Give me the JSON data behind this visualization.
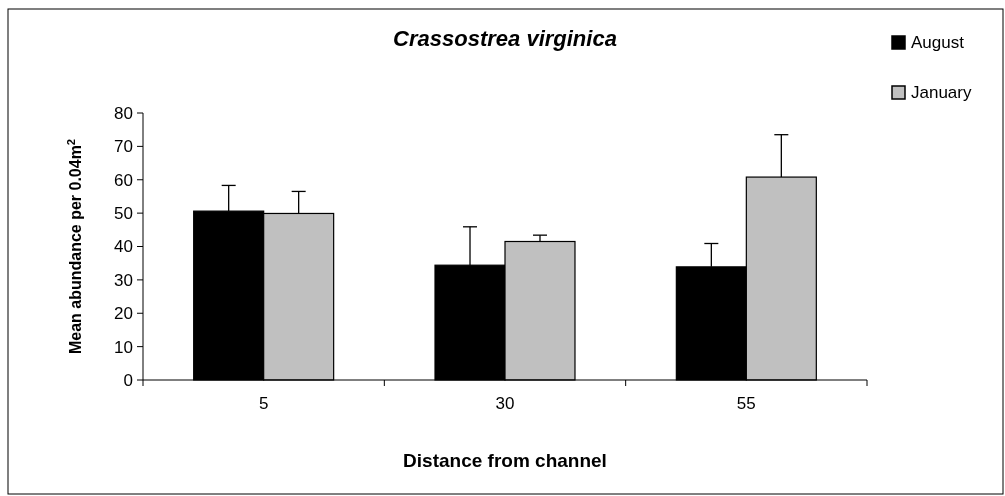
{
  "chart_data": {
    "type": "bar",
    "title": "Crassostrea virginica",
    "xlabel": "Distance from channel",
    "ylabel": "Mean abundance per 0.04m$^{2}$",
    "categories": [
      "5",
      "30",
      "55"
    ],
    "series": [
      {
        "name": "August",
        "color": "#000000",
        "values": [
          50.6,
          34.4,
          33.9
        ],
        "errors": [
          7.7,
          11.5,
          7.0
        ]
      },
      {
        "name": "January",
        "color": "#c0c0c0",
        "values": [
          49.9,
          41.5,
          60.8
        ],
        "errors": [
          6.6,
          1.9,
          12.7
        ]
      }
    ],
    "ylim": [
      0,
      80
    ],
    "yticks": [
      0,
      10,
      20,
      30,
      40,
      50,
      60,
      70,
      80
    ],
    "grid": false,
    "legend": "top right"
  }
}
